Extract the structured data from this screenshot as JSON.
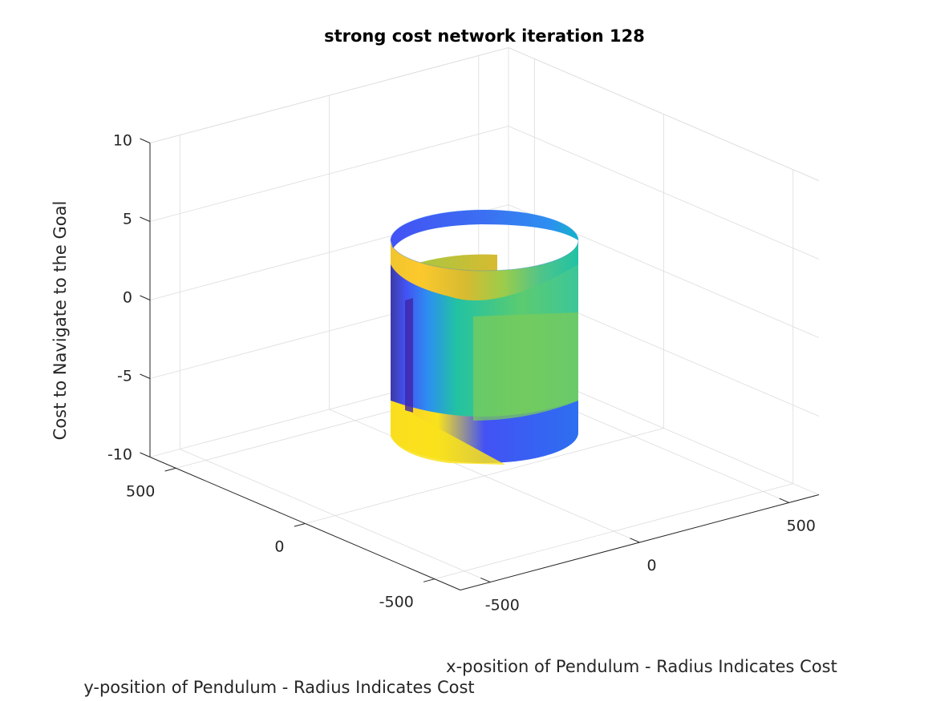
{
  "chart_data": {
    "type": "surface3d",
    "title": "strong cost network iteration 128",
    "xlabel": "x-position of Pendulum - Radius Indicates Cost",
    "ylabel": "y-position of Pendulum - Radius Indicates Cost",
    "zlabel": "Cost to Navigate to the Goal",
    "xlim": [
      -600,
      600
    ],
    "ylim": [
      -600,
      600
    ],
    "zlim": [
      -10,
      10
    ],
    "xticks": [
      -500,
      0,
      500
    ],
    "yticks": [
      -500,
      0,
      500
    ],
    "zticks": [
      -10,
      -5,
      0,
      5,
      10
    ],
    "xtick_labels": [
      "-500",
      "0",
      "500"
    ],
    "ytick_labels": [
      "-500",
      "0",
      "500"
    ],
    "ztick_labels": [
      "-10",
      "-5",
      "0",
      "5",
      "10"
    ],
    "grid": true,
    "colormap": "parula",
    "colormap_colors": [
      "#3e26a8",
      "#4352f4",
      "#2d7ff0",
      "#12a8d8",
      "#21c2a4",
      "#7acb59",
      "#d6bb31",
      "#fdc92c",
      "#f9fb15"
    ],
    "surface": {
      "shape": "cylinder",
      "radius": 240,
      "z_range": [
        -8,
        6
      ]
    }
  }
}
